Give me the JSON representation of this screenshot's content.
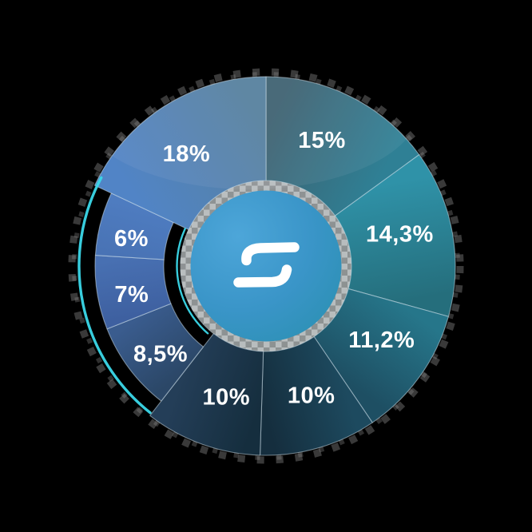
{
  "background_color": "#000000",
  "chart_data": {
    "type": "pie",
    "subtype": "donut",
    "title": "",
    "unit": "%",
    "start_angle_deg": 0,
    "direction": "clockwise",
    "legend": "none",
    "labels_position": "inside",
    "values": [
      15,
      14.3,
      11.2,
      10,
      10,
      8.5,
      7,
      6,
      18
    ],
    "labels": [
      "15%",
      "14,3%",
      "11,2%",
      "10%",
      "10%",
      "8,5%",
      "7%",
      "6%",
      "18%"
    ],
    "highlighted_indices": [
      5,
      6,
      7
    ],
    "segments": [
      {
        "label": "15%",
        "value": 15,
        "color_start": "#3e6170",
        "color_end": "#2f8095",
        "highlighted": false
      },
      {
        "label": "14,3%",
        "value": 14.3,
        "color_start": "#2f92a8",
        "color_end": "#256e7c",
        "highlighted": false
      },
      {
        "label": "11,2%",
        "value": 11.2,
        "color_start": "#26768a",
        "color_end": "#1e4f63",
        "highlighted": false
      },
      {
        "label": "10%",
        "value": 10,
        "color_start": "#1d4a5f",
        "color_end": "#152e3e",
        "highlighted": false
      },
      {
        "label": "10%",
        "value": 10,
        "color_start": "#152e3e",
        "color_end": "#243e58",
        "highlighted": false
      },
      {
        "label": "8,5%",
        "value": 8.5,
        "color_start": "#2b4767",
        "color_end": "#3a5c8e",
        "highlighted": true
      },
      {
        "label": "7%",
        "value": 7,
        "color_start": "#3e60a0",
        "color_end": "#4870b2",
        "highlighted": true
      },
      {
        "label": "6%",
        "value": 6,
        "color_start": "#4973b5",
        "color_end": "#4e7cc0",
        "highlighted": true
      },
      {
        "label": "18%",
        "value": 18,
        "color_start": "#5184c6",
        "color_end": "#56819e",
        "highlighted": false
      }
    ],
    "label_color": "#ffffff",
    "separator_color": "rgba(214,232,242,0.5)"
  },
  "highlight": {
    "arc_color": "#3bd8e9"
  },
  "hub": {
    "fill_start": "#4da6d9",
    "fill_mid": "#3a95c8",
    "fill_end": "#2b90b2",
    "ring_light": "#c4c1be",
    "ring_dark": "#95928f",
    "logo_glyph": "S",
    "logo_color": "#ffffff"
  }
}
